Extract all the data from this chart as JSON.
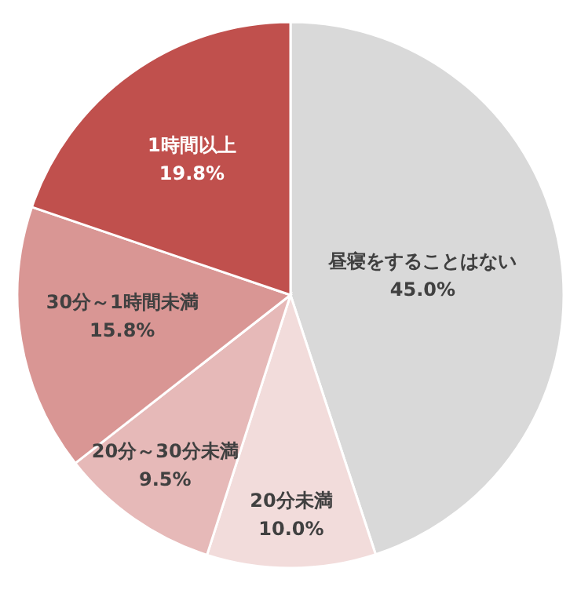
{
  "chart_data": {
    "type": "pie",
    "categories": [
      "昼寝をすることはない",
      "20分未満",
      "20分～30分未満",
      "30分～1時間未満",
      "1時間以上"
    ],
    "values": [
      45.0,
      10.0,
      9.5,
      15.8,
      19.8
    ],
    "colors": [
      "#d9d9d9",
      "#f2dcdb",
      "#e6b9b8",
      "#d99694",
      "#c0504d"
    ],
    "value_labels": [
      "45.0%",
      "10.0%",
      "9.5%",
      "15.8%",
      "19.8%"
    ]
  }
}
